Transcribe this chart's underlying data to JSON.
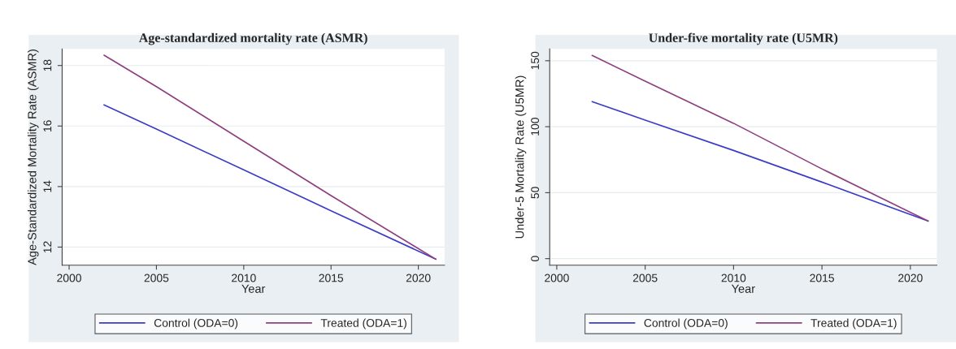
{
  "chart_data": [
    {
      "type": "line",
      "title": "Age-standardized mortality rate (ASMR)",
      "xlabel": "Year",
      "ylabel": "Age-Standardized Mortality Rate (ASMR)",
      "x": [
        2002,
        2005,
        2010,
        2015,
        2021
      ],
      "series": [
        {
          "name": "Control (ODA=0)",
          "color": "#3c3cc8",
          "values": [
            16.7,
            15.9,
            14.55,
            13.2,
            11.6
          ]
        },
        {
          "name": "Treated (ODA=1)",
          "color": "#8e3f7f",
          "values": [
            18.34,
            17.3,
            15.5,
            13.7,
            11.6
          ]
        }
      ],
      "xlim": [
        1999.6,
        2021.5
      ],
      "xticks": [
        2000,
        2005,
        2010,
        2015,
        2020
      ],
      "ylim": [
        11.4,
        18.55
      ],
      "yticks": [
        12,
        14,
        16,
        18
      ],
      "grid": "y",
      "legend": "bottom"
    },
    {
      "type": "line",
      "title": "Under-five mortality rate (U5MR)",
      "xlabel": "Year",
      "ylabel": "Under-5 Mortality Rate (U5MR)",
      "x": [
        2002,
        2005,
        2010,
        2015,
        2021
      ],
      "series": [
        {
          "name": "Control (ODA=0)",
          "color": "#3c3cc8",
          "values": [
            119,
            105,
            82,
            58,
            28.5
          ]
        },
        {
          "name": "Treated (ODA=1)",
          "color": "#8e3f7f",
          "values": [
            154,
            134.5,
            102.6,
            68,
            28.5
          ]
        }
      ],
      "xlim": [
        1999.6,
        2021.5
      ],
      "xticks": [
        2000,
        2005,
        2010,
        2015,
        2020
      ],
      "ylim": [
        -5,
        159
      ],
      "yticks": [
        0,
        50,
        100,
        150
      ],
      "grid": "y",
      "legend": "bottom"
    }
  ]
}
